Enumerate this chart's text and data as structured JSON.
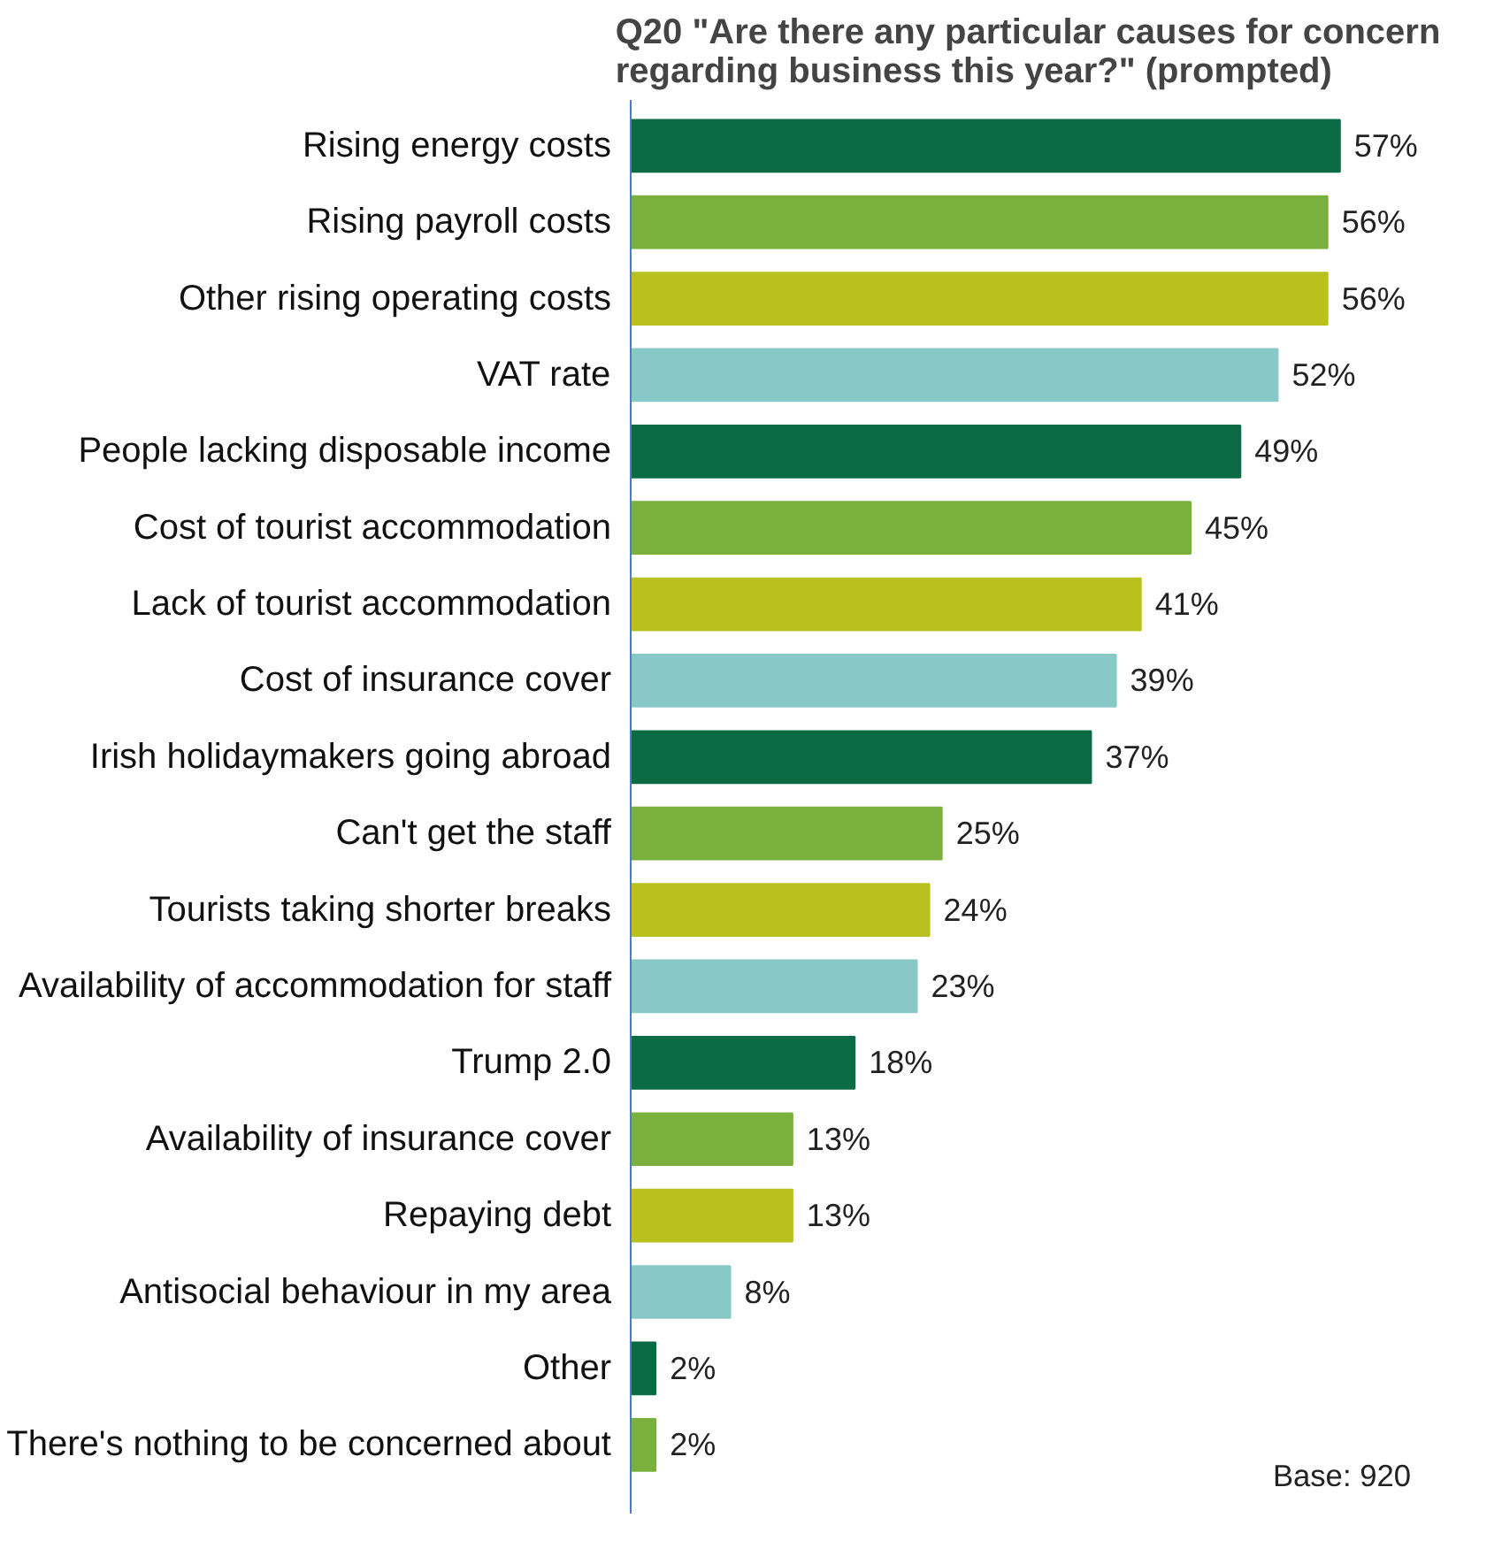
{
  "chart_data": {
    "type": "bar",
    "orientation": "horizontal",
    "title": "Q20 \"Are there any particular causes for concern regarding business this year?\" (prompted)",
    "categories": [
      "Rising energy costs",
      "Rising payroll costs",
      "Other rising operating costs",
      "VAT rate",
      "People lacking disposable income",
      "Cost of tourist accommodation",
      "Lack of tourist accommodation",
      "Cost of insurance cover",
      "Irish holidaymakers going abroad",
      "Can't get the staff",
      "Tourists taking shorter breaks",
      "Availability of accommodation for staff",
      "Trump 2.0",
      "Availability of insurance cover",
      "Repaying debt",
      "Antisocial behaviour in my area",
      "Other",
      "There's nothing to be concerned about"
    ],
    "values": [
      57,
      56,
      56,
      52,
      49,
      45,
      41,
      39,
      37,
      25,
      24,
      23,
      18,
      13,
      13,
      8,
      2,
      2
    ],
    "value_labels": [
      "57%",
      "56%",
      "56%",
      "52%",
      "49%",
      "45%",
      "41%",
      "39%",
      "37%",
      "25%",
      "24%",
      "23%",
      "18%",
      "13%",
      "13%",
      "8%",
      "2%",
      "2%"
    ],
    "colors": [
      "#0b6b45",
      "#7ab03e",
      "#b9c11e",
      "#88c9c8",
      "#0b6b45",
      "#7ab03e",
      "#b9c11e",
      "#88c9c8",
      "#0b6b45",
      "#7ab03e",
      "#b9c11e",
      "#88c9c8",
      "#0b6b45",
      "#7ab03e",
      "#b9c11e",
      "#88c9c8",
      "#0b6b45",
      "#7ab03e"
    ],
    "annotations": [
      "Base: 920"
    ],
    "grid": false
  }
}
